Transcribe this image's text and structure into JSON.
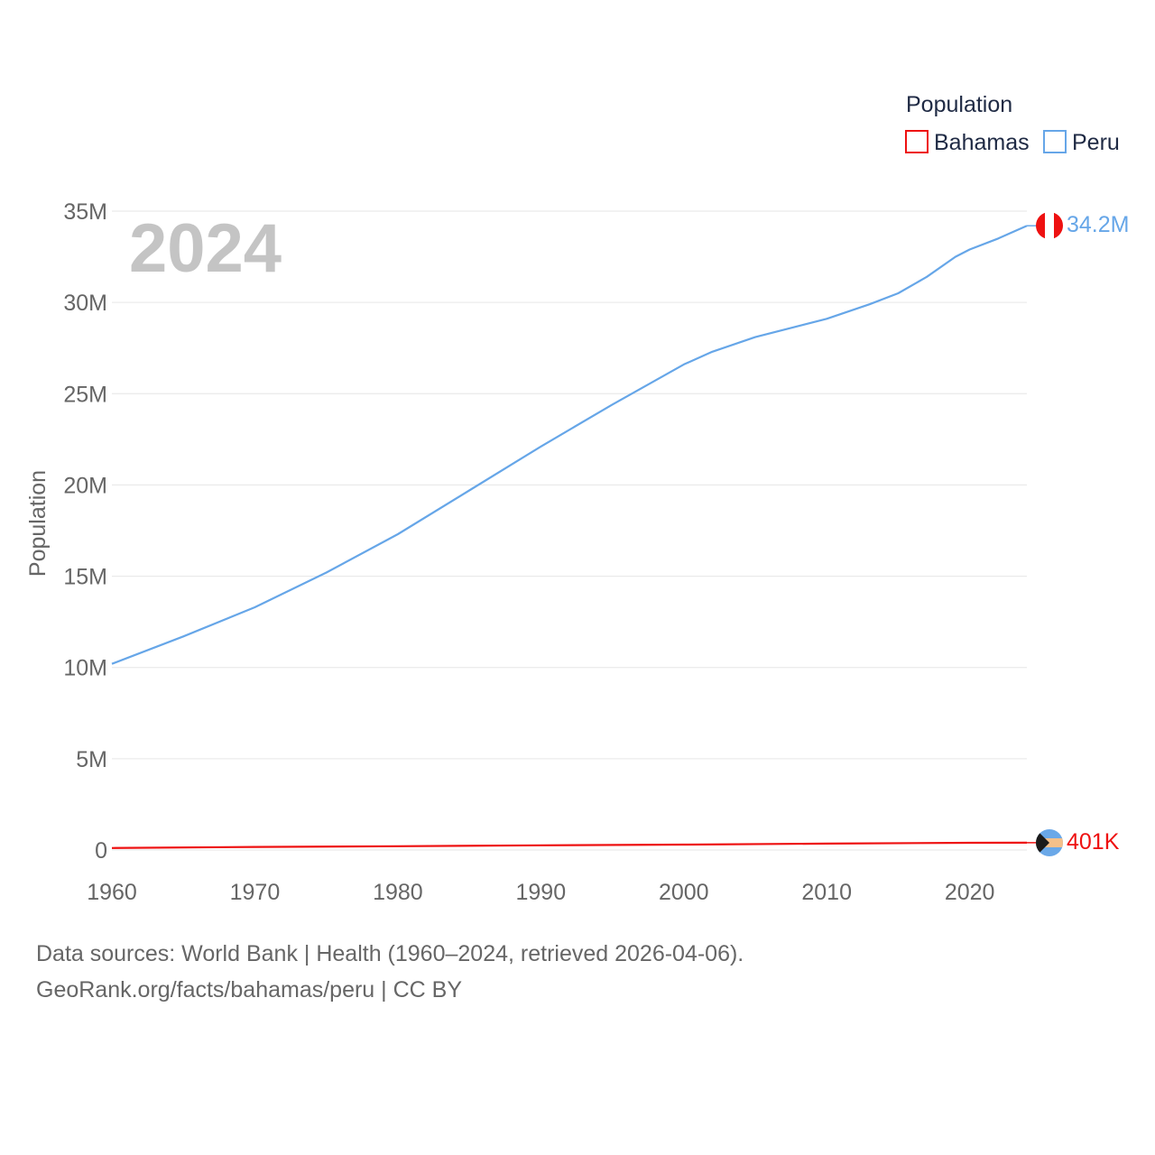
{
  "chart_data": {
    "type": "line",
    "title": "Population",
    "year_label": "2024",
    "ylabel": "Population",
    "xlabel": "",
    "xlim": [
      1960,
      2024
    ],
    "ylim": [
      0,
      35000000
    ],
    "x_ticks": [
      1960,
      1970,
      1980,
      1990,
      2000,
      2010,
      2020
    ],
    "y_ticks": [
      {
        "value": 0,
        "label": "0"
      },
      {
        "value": 5000000,
        "label": "5M"
      },
      {
        "value": 10000000,
        "label": "10M"
      },
      {
        "value": 15000000,
        "label": "15M"
      },
      {
        "value": 20000000,
        "label": "20M"
      },
      {
        "value": 25000000,
        "label": "25M"
      },
      {
        "value": 30000000,
        "label": "30M"
      },
      {
        "value": 35000000,
        "label": "35M"
      }
    ],
    "grid": true,
    "legend_title": "Population",
    "legend_position": "top-right",
    "series": [
      {
        "name": "Bahamas",
        "color": "#ee1111",
        "end_label": "401K",
        "flag_icon": "bahamas-flag-icon",
        "x": [
          1960,
          1970,
          1980,
          1990,
          2000,
          2010,
          2020,
          2024
        ],
        "values": [
          110000,
          170000,
          210000,
          256000,
          298000,
          349000,
          397000,
          401000
        ]
      },
      {
        "name": "Peru",
        "color": "#66a6e8",
        "end_label": "34.2M",
        "flag_icon": "peru-flag-icon",
        "x": [
          1960,
          1965,
          1970,
          1975,
          1980,
          1985,
          1990,
          1995,
          2000,
          2002,
          2005,
          2010,
          2013,
          2015,
          2017,
          2019,
          2020,
          2022,
          2024
        ],
        "values": [
          10200000,
          11700000,
          13300000,
          15200000,
          17300000,
          19700000,
          22100000,
          24400000,
          26600000,
          27300000,
          28100000,
          29100000,
          29900000,
          30500000,
          31400000,
          32500000,
          32900000,
          33500000,
          34200000
        ]
      }
    ]
  },
  "footer": {
    "sources": "Data sources: World Bank | Health (1960–2024, retrieved 2026-04-06).",
    "url": "GeoRank.org/facts/bahamas/peru | CC BY"
  }
}
